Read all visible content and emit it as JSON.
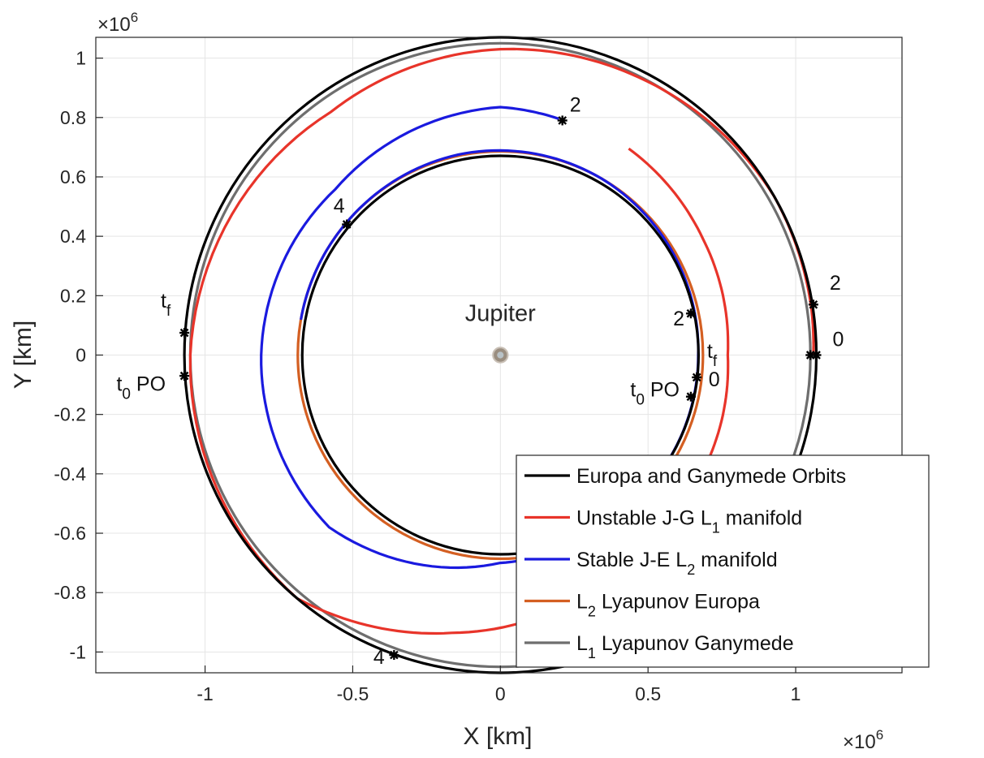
{
  "chart_data": {
    "type": "line",
    "xlabel": "X [km]",
    "ylabel": "Y [km]",
    "x_exponent": "×10",
    "x_exponent_power": "6",
    "y_exponent": "×10",
    "y_exponent_power": "6",
    "xlim": [
      -1.37,
      1.36
    ],
    "ylim": [
      -1.07,
      1.07
    ],
    "xticks": [
      -1,
      -0.5,
      0,
      0.5,
      1
    ],
    "xtick_labels": [
      "-1",
      "-0.5",
      "0",
      "0.5",
      "1"
    ],
    "yticks": [
      -1,
      -0.8,
      -0.6,
      -0.4,
      -0.2,
      0,
      0.2,
      0.4,
      0.6,
      0.8,
      1
    ],
    "ytick_labels": [
      "-1",
      "-0.8",
      "-0.6",
      "-0.4",
      "-0.2",
      "0",
      "0.2",
      "0.4",
      "0.6",
      "0.8",
      "1"
    ],
    "grid": true,
    "legend_position": "bottom-right",
    "central_body": {
      "label": "Jupiter",
      "x": 0,
      "y": 0,
      "radius": 0.0699
    },
    "series": [
      {
        "name": "Europa and Ganymede Orbits",
        "color": "#000000",
        "kind": "circles",
        "radii": [
          0.671,
          1.07
        ]
      },
      {
        "name": "Unstable J-G L",
        "subscript": "1",
        "suffix": " manifold",
        "color": "#e8342a",
        "kind": "spiral",
        "points": [
          {
            "angle_deg": 0,
            "r": 1.06
          },
          {
            "angle_deg": 9,
            "r": 1.065
          },
          {
            "angle_deg": 30,
            "r": 1.07
          },
          {
            "angle_deg": 65,
            "r": 1.045
          },
          {
            "angle_deg": 90,
            "r": 1.03
          },
          {
            "angle_deg": 125,
            "r": 1.0
          },
          {
            "angle_deg": 180,
            "r": 1.05
          },
          {
            "angle_deg": 230,
            "r": 1.07
          },
          {
            "angle_deg": 260,
            "r": 0.95
          },
          {
            "angle_deg": 295,
            "r": 0.84
          },
          {
            "angle_deg": 330,
            "r": 0.79
          },
          {
            "angle_deg": 360,
            "r": 0.77
          },
          {
            "angle_deg": 390,
            "r": 0.79
          },
          {
            "angle_deg": 418,
            "r": 0.82
          }
        ]
      },
      {
        "name": "Stable J-E L",
        "subscript": "2",
        "suffix": " manifold",
        "color": "#1a1adf",
        "kind": "spiral",
        "points": [
          {
            "angle_deg": 76,
            "r": 0.82
          },
          {
            "angle_deg": 90,
            "r": 0.835
          },
          {
            "angle_deg": 135,
            "r": 0.79
          },
          {
            "angle_deg": 180,
            "r": 0.81
          },
          {
            "angle_deg": 225,
            "r": 0.82
          },
          {
            "angle_deg": 270,
            "r": 0.7
          },
          {
            "angle_deg": 300,
            "r": 0.675
          },
          {
            "angle_deg": 330,
            "r": 0.67
          },
          {
            "angle_deg": 360,
            "r": 0.67
          },
          {
            "angle_deg": 390,
            "r": 0.678
          },
          {
            "angle_deg": 420,
            "r": 0.686
          },
          {
            "angle_deg": 460,
            "r": 0.69
          },
          {
            "angle_deg": 500,
            "r": 0.686
          },
          {
            "angle_deg": 530,
            "r": 0.686
          }
        ]
      },
      {
        "name": "L",
        "subscript": "2",
        "suffix": " Lyapunov Europa",
        "color": "#d45f22",
        "kind": "ring",
        "r": 0.686
      },
      {
        "name": "L",
        "subscript": "1",
        "suffix": " Lyapunov Ganymede",
        "color": "#6e6e6e",
        "kind": "ring",
        "r": 1.05
      }
    ],
    "markers": [
      {
        "x": 0.21,
        "y": 0.79
      },
      {
        "x": 1.06,
        "y": 0.17
      },
      {
        "x": 1.05,
        "y": 0.0
      },
      {
        "x": 1.07,
        "y": 0.0
      },
      {
        "x": 0.645,
        "y": 0.14
      },
      {
        "x": 0.665,
        "y": -0.075
      },
      {
        "x": 0.645,
        "y": -0.14
      },
      {
        "x": -0.52,
        "y": 0.44
      },
      {
        "x": -1.07,
        "y": 0.075
      },
      {
        "x": -1.07,
        "y": -0.07
      },
      {
        "x": -0.36,
        "y": -1.01
      }
    ],
    "annotations": [
      {
        "text": "2",
        "x": 0.235,
        "y": 0.82
      },
      {
        "text": "2",
        "x": 1.115,
        "y": 0.22
      },
      {
        "text": "0",
        "x": 1.125,
        "y": 0.03
      },
      {
        "text": "2",
        "x": 0.585,
        "y": 0.1
      },
      {
        "text": "0",
        "x": 0.705,
        "y": -0.105
      },
      {
        "text": "4",
        "x": -0.565,
        "y": 0.48
      },
      {
        "text": "4",
        "x": -0.43,
        "y": -1.04
      },
      {
        "text": "t",
        "sub": "f",
        "x": 0.7,
        "y": -0.01
      },
      {
        "text": "t",
        "sub": "0",
        "x": 0.44,
        "y": -0.14,
        "suffix": " PO"
      },
      {
        "text": "t",
        "sub": "f",
        "x": -1.15,
        "y": 0.16
      },
      {
        "text": "t",
        "sub": "0",
        "x": -1.3,
        "y": -0.12,
        "suffix": " PO"
      }
    ]
  },
  "colors": {
    "axis": "#262626",
    "grid": "#e5e5e5"
  }
}
